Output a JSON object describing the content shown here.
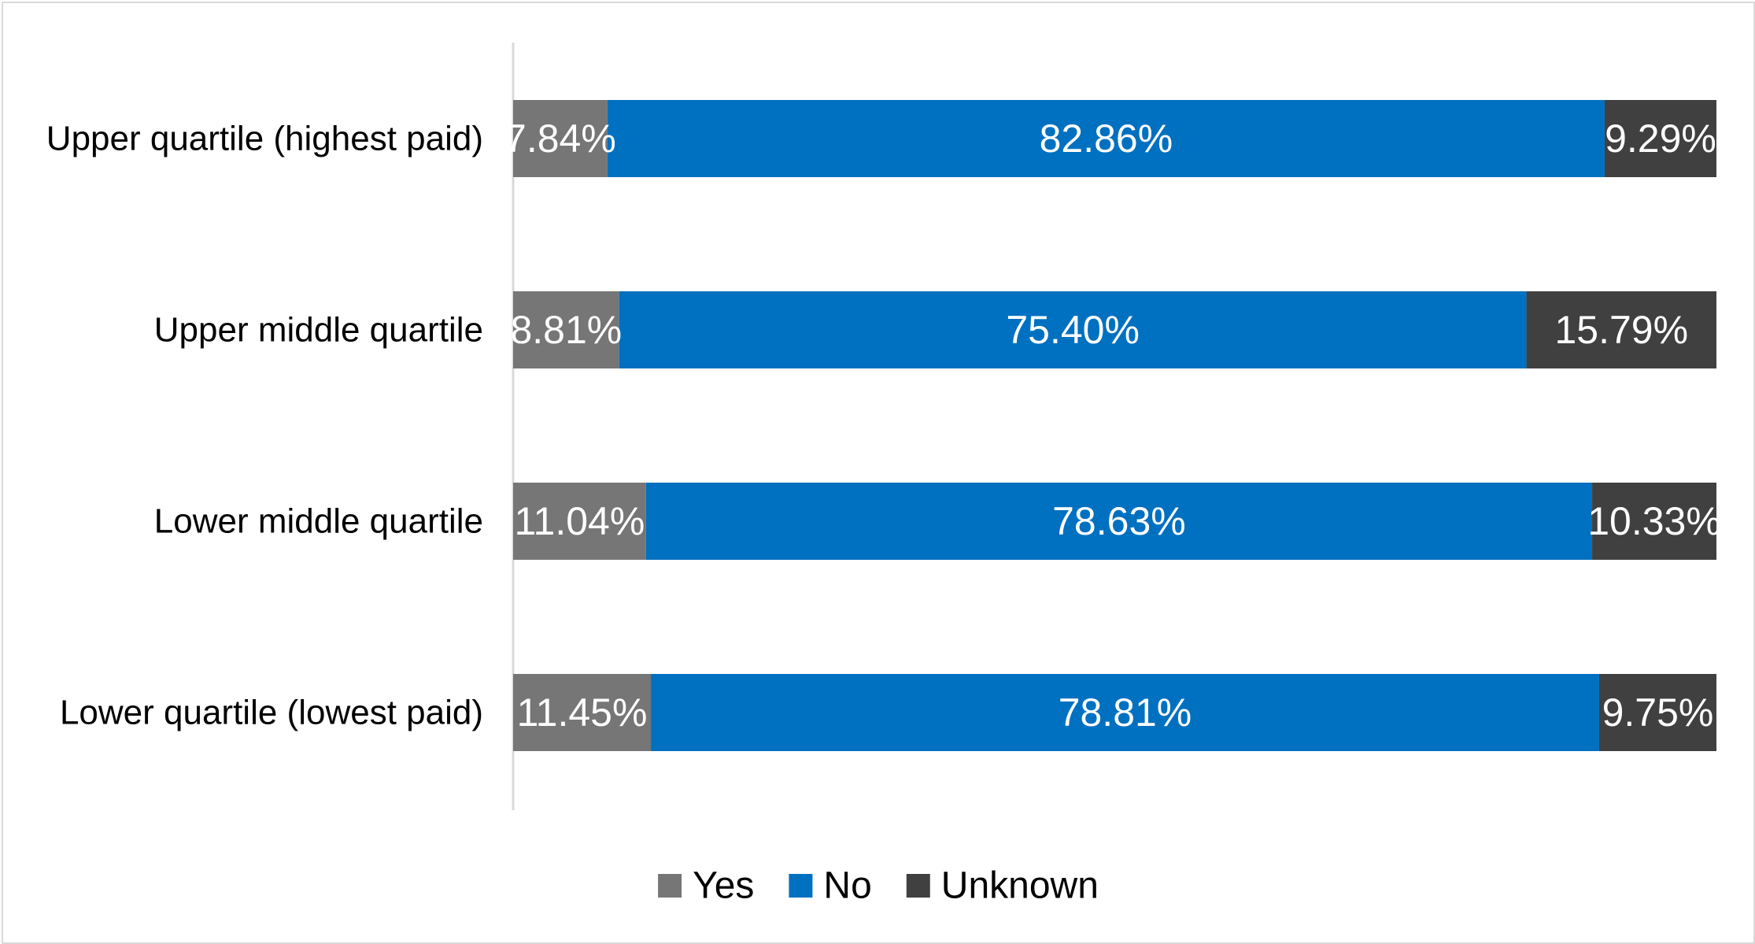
{
  "chart_data": {
    "type": "bar",
    "orientation": "horizontal",
    "stacked": "percent",
    "categories": [
      "Upper quartile (highest paid)",
      "Upper middle quartile",
      "Lower middle quartile",
      "Lower quartile (lowest paid)"
    ],
    "series": [
      {
        "name": "Yes",
        "color": "#767676",
        "values": [
          7.84,
          8.81,
          11.04,
          11.45
        ],
        "labels": [
          "7.84%",
          "8.81%",
          "11.04%",
          "11.45%"
        ]
      },
      {
        "name": "No",
        "color": "#0070c0",
        "values": [
          82.86,
          75.4,
          78.63,
          78.81
        ],
        "labels": [
          "82.86%",
          "75.40%",
          "78.63%",
          "78.81%"
        ]
      },
      {
        "name": "Unknown",
        "color": "#404040",
        "values": [
          9.29,
          15.79,
          10.33,
          9.75
        ],
        "labels": [
          "9.29%",
          "15.79%",
          "10.33%",
          "9.75%"
        ]
      }
    ],
    "xlim": [
      0,
      100
    ],
    "grid": false,
    "legend_position": "bottom",
    "title": "",
    "xlabel": "",
    "ylabel": ""
  }
}
